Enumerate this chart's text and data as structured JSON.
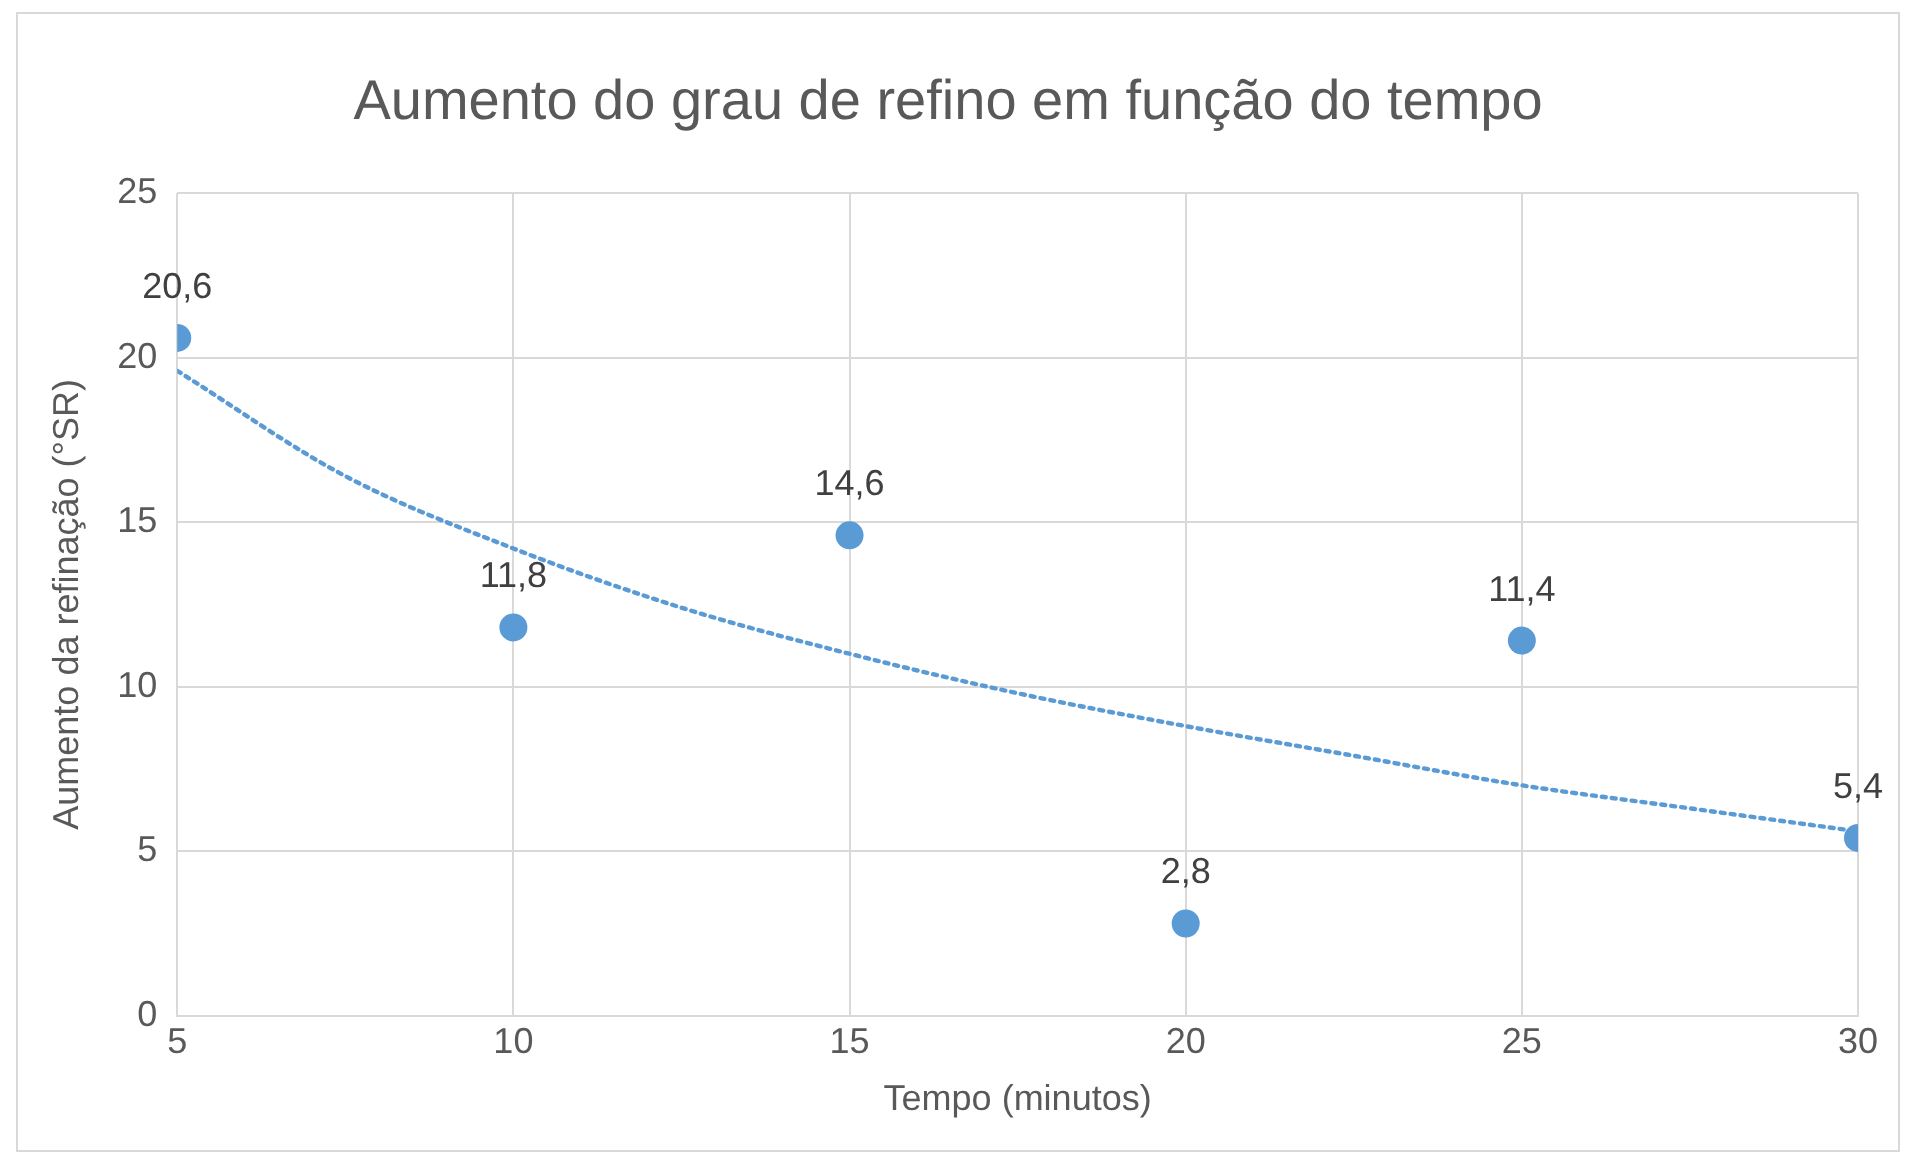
{
  "chart_data": {
    "type": "scatter",
    "title": "Aumento do grau de refino em função do tempo",
    "xlabel": "Tempo (minutos)",
    "ylabel": "Aumento da refinação (°SR)",
    "xlim": [
      5,
      30
    ],
    "xticks": [
      5,
      10,
      15,
      20,
      25,
      30
    ],
    "ylim": [
      0,
      25
    ],
    "yticks": [
      0,
      5,
      10,
      15,
      20,
      25
    ],
    "grid": true,
    "legend": false,
    "marker": "circle",
    "series": [
      {
        "type": "scatter",
        "color": "#5b9bd5",
        "x": [
          5,
          10,
          15,
          20,
          25,
          30
        ],
        "values": [
          20.6,
          11.8,
          14.6,
          2.8,
          11.4,
          5.4
        ],
        "value_labels": [
          "20,6",
          "11,8",
          "14,6",
          "2,8",
          "11,4",
          "5,4"
        ]
      },
      {
        "type": "line",
        "color": "#5b9bd5",
        "line_style": "dotted",
        "marker": "none",
        "x": [
          5,
          7.5,
          10,
          12.5,
          15,
          17.5,
          20,
          22.5,
          25,
          27.5,
          30
        ],
        "values": [
          19.6,
          16.4,
          14.2,
          12.4,
          11.0,
          9.8,
          8.8,
          7.9,
          7.0,
          6.3,
          5.6
        ]
      }
    ]
  }
}
